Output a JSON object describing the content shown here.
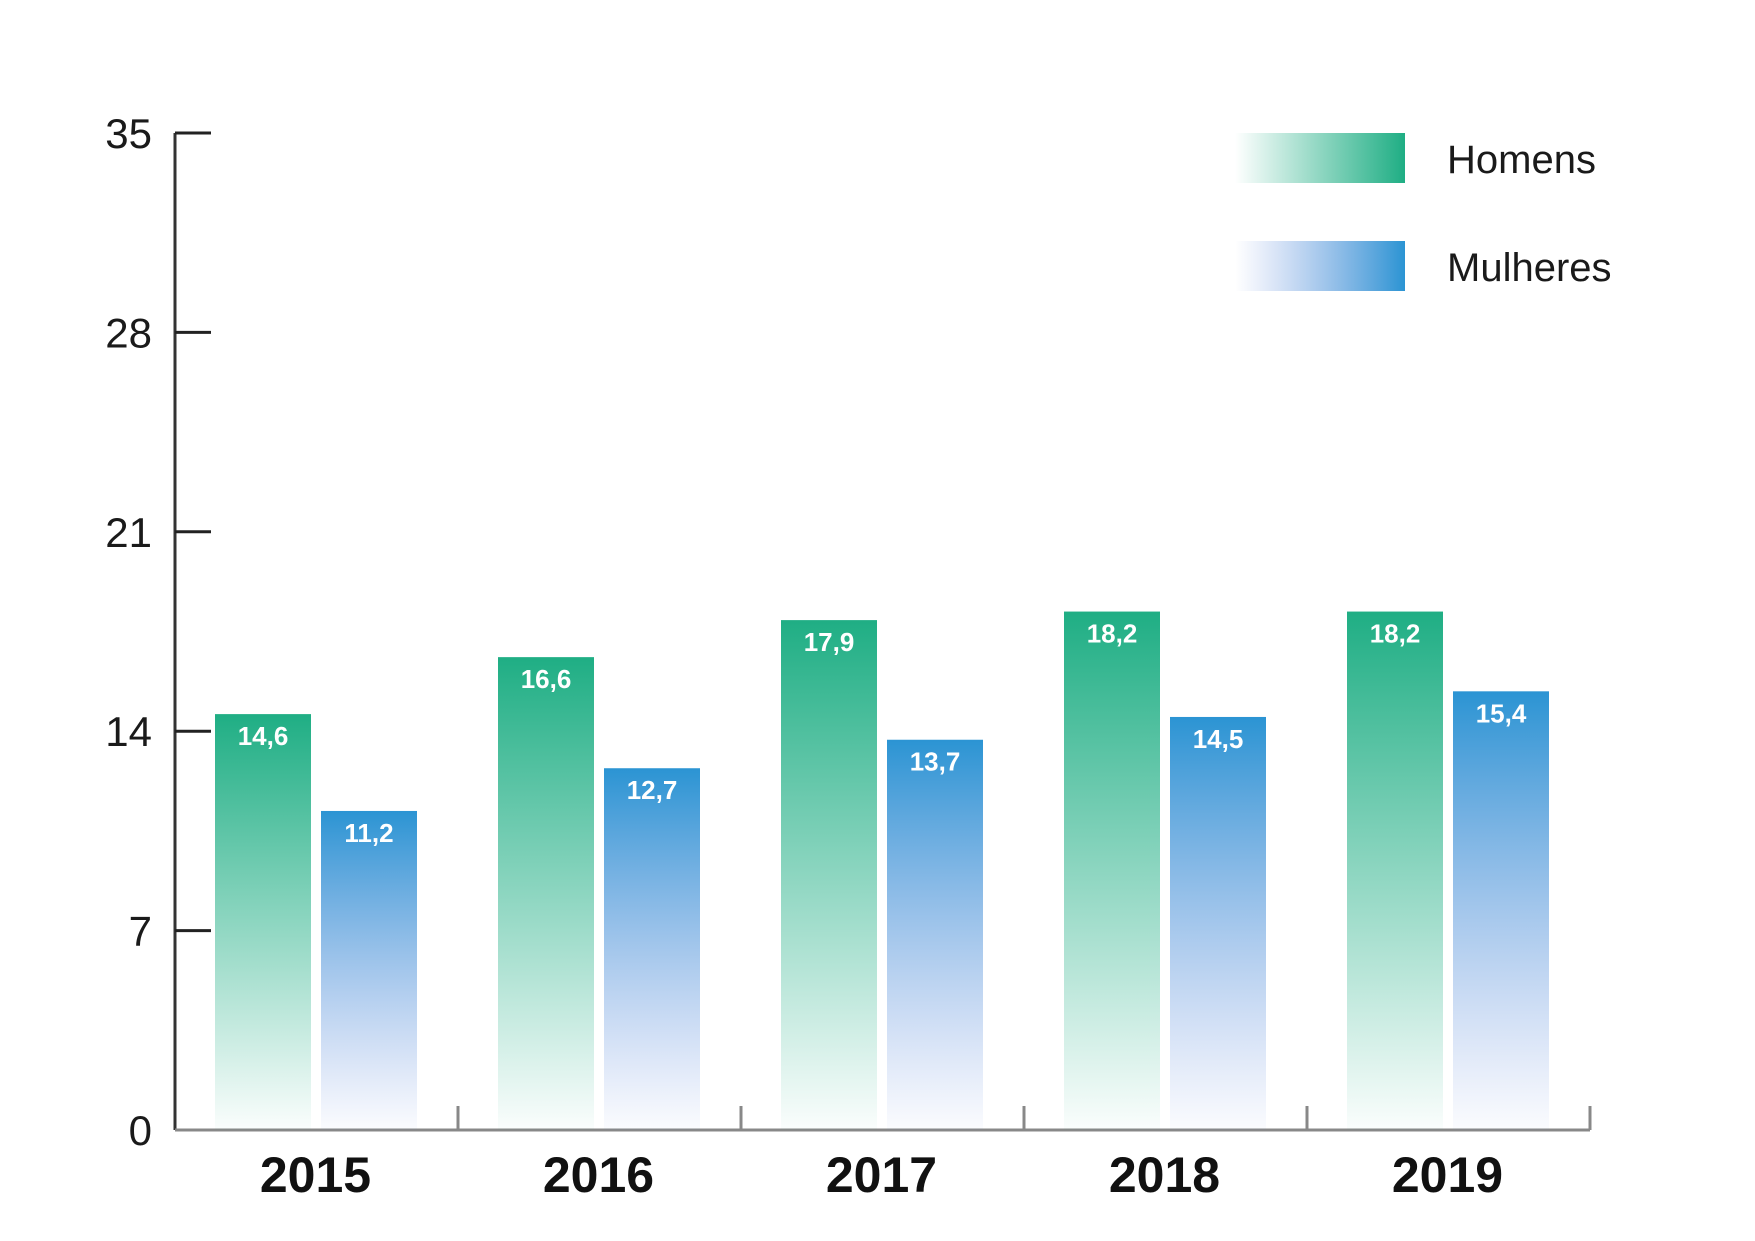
{
  "chart_data": {
    "type": "bar",
    "categories": [
      "2015",
      "2016",
      "2017",
      "2018",
      "2019"
    ],
    "series": [
      {
        "name": "Homens",
        "values": [
          14.6,
          16.6,
          17.9,
          18.2,
          18.2
        ],
        "labels": [
          "14,6",
          "16,6",
          "17,9",
          "18,2",
          "18,2"
        ],
        "color": "#1fae84"
      },
      {
        "name": "Mulheres",
        "values": [
          11.2,
          12.7,
          13.7,
          14.5,
          15.4
        ],
        "labels": [
          "11,2",
          "12,7",
          "13,7",
          "14,5",
          "15,4"
        ],
        "color": "#2b94d3"
      }
    ],
    "yticks": [
      "0",
      "7",
      "14",
      "21",
      "28",
      "35"
    ],
    "ylim": [
      0,
      35
    ],
    "legend_position": "top-right",
    "grid": false
  }
}
